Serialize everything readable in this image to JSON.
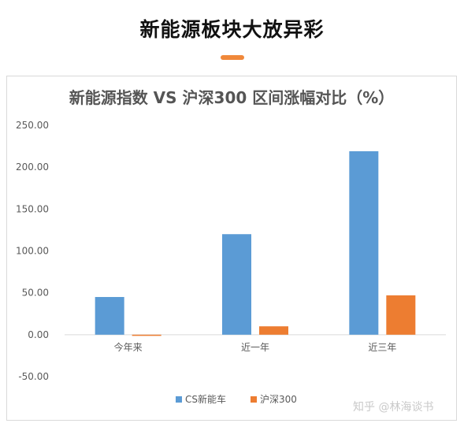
{
  "header": {
    "title": "新能源板块大放异彩"
  },
  "colors": {
    "accent": "#f0883a",
    "series_cs": "#5b9bd5",
    "series_hs300": "#ed7d31"
  },
  "watermark": "知乎 @林海谈书",
  "chart_data": {
    "type": "bar",
    "title": "新能源指数 VS 沪深300 区间涨幅对比（%）",
    "xlabel": "",
    "ylabel": "",
    "categories": [
      "今年来",
      "近一年",
      "近三年"
    ],
    "series": [
      {
        "name": "CS新能车",
        "values": [
          45,
          120,
          219
        ]
      },
      {
        "name": "沪深300",
        "values": [
          -1,
          10,
          47
        ]
      }
    ],
    "ylim": [
      -50,
      250
    ],
    "yticks": [
      "250.00",
      "200.00",
      "150.00",
      "100.00",
      "50.00",
      "0.00",
      "-50.00"
    ],
    "ytick_values": [
      250,
      200,
      150,
      100,
      50,
      0,
      -50
    ],
    "grid": false,
    "legend_position": "bottom"
  }
}
